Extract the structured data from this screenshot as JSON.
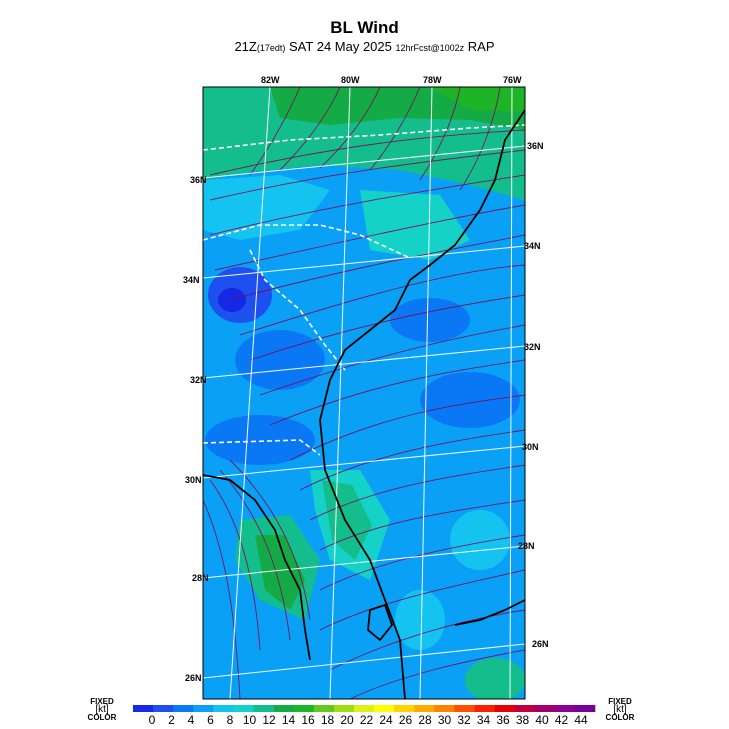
{
  "title": "BL Wind",
  "subtitle": {
    "time": "21Z",
    "local": "(17edt)",
    "date": "SAT 24 May 2025",
    "forecast": "12hrFcst@1002z",
    "model": "RAP"
  },
  "map": {
    "lon_labels": [
      "82W",
      "80W",
      "78W",
      "76W"
    ],
    "lat_labels_left": [
      "36N",
      "34N",
      "32N",
      "30N",
      "28N",
      "26N"
    ],
    "lat_labels_right": [
      "36N",
      "34N",
      "32N",
      "30N",
      "28N",
      "26N"
    ]
  },
  "colorbar": {
    "left_top": "FIXED",
    "left_unit": "[kt]",
    "left_bottom": "COLOR",
    "right_top": "FIXED",
    "right_unit": "[kt]",
    "right_bottom": "COLOR",
    "ticks": [
      "0",
      "2",
      "4",
      "6",
      "8",
      "10",
      "12",
      "14",
      "16",
      "18",
      "20",
      "22",
      "24",
      "26",
      "28",
      "30",
      "32",
      "34",
      "36",
      "38",
      "40",
      "42",
      "44"
    ],
    "colors": [
      "#1428e6",
      "#1e50f0",
      "#0a78f5",
      "#0aa0f5",
      "#14c3f0",
      "#14d2c8",
      "#14be8c",
      "#14aa46",
      "#1eb428",
      "#64c81e",
      "#a0dc14",
      "#dcf014",
      "#ffff00",
      "#ffd200",
      "#ffaa00",
      "#ff8200",
      "#ff5000",
      "#ff1e00",
      "#e6000a",
      "#be003c",
      "#a0006e",
      "#8c0096",
      "#78009a"
    ]
  }
}
